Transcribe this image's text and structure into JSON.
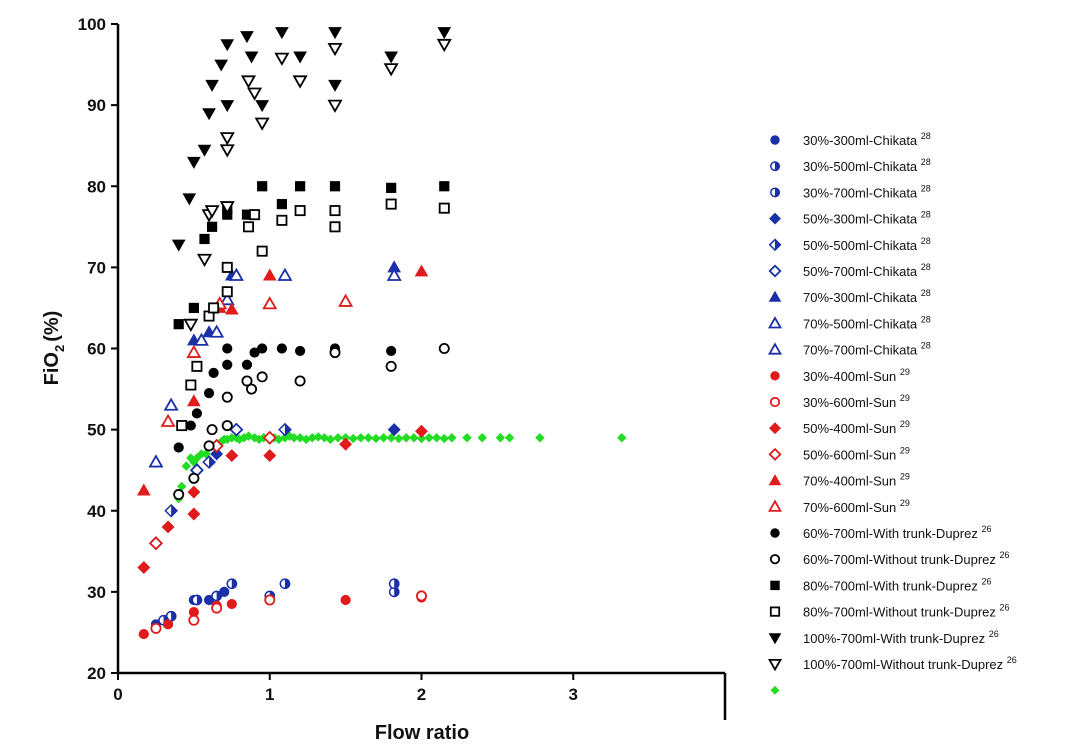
{
  "chart_data": {
    "type": "scatter",
    "title": "",
    "xlabel": "Flow ratio",
    "ylabel": "FiO2 (%)",
    "ylabel_main": "FiO",
    "ylabel_sub": "2",
    "ylabel_unit": "(%)",
    "xlim": [
      0,
      4
    ],
    "ylim": [
      20,
      100
    ],
    "xticks": [
      "0",
      "1",
      "2",
      "3"
    ],
    "yticks": [
      "20",
      "30",
      "40",
      "50",
      "60",
      "70",
      "80",
      "90",
      "100"
    ],
    "grid": false,
    "legend_position": "right",
    "colors": {
      "blue": "#1a2fa8",
      "red": "#e01b1b",
      "black": "#000000",
      "green": "#22dd22"
    },
    "series": [
      {
        "name": "30%-300ml-Chikata",
        "ref": "28",
        "marker": "circle",
        "fill": "filled",
        "color": "#1a2fa8",
        "x": [
          0.25,
          0.5,
          0.6,
          0.7
        ],
        "y": [
          26.0,
          29.0,
          29.0,
          30.0
        ]
      },
      {
        "name": "30%-500ml-Chikata",
        "ref": "28",
        "marker": "circle",
        "fill": "half",
        "color": "#1a2fa8",
        "x": [
          0.35,
          0.52,
          0.75,
          1.1,
          1.82
        ],
        "y": [
          27.0,
          29.0,
          31.0,
          31.0,
          30.0
        ]
      },
      {
        "name": "30%-700ml-Chikata",
        "ref": "28",
        "marker": "circle",
        "fill": "half",
        "color": "#1a2fa8",
        "x": [
          0.3,
          0.65,
          1.0,
          1.82
        ],
        "y": [
          26.5,
          29.5,
          29.5,
          31.0
        ]
      },
      {
        "name": "50%-300ml-Chikata",
        "ref": "28",
        "marker": "diamond",
        "fill": "filled",
        "color": "#1a2fa8",
        "x": [
          0.25,
          0.52,
          0.65,
          1.82
        ],
        "y": [
          36.0,
          45.0,
          47.0,
          50.0
        ]
      },
      {
        "name": "50%-500ml-Chikata",
        "ref": "28",
        "marker": "diamond",
        "fill": "half",
        "color": "#1a2fa8",
        "x": [
          0.35,
          0.6,
          1.1
        ],
        "y": [
          40.0,
          46.0,
          50.0
        ]
      },
      {
        "name": "50%-700ml-Chikata",
        "ref": "28",
        "marker": "diamond",
        "fill": "open",
        "color": "#1a2fa8",
        "x": [
          0.25,
          0.52,
          0.78
        ],
        "y": [
          36.0,
          45.0,
          50.0
        ]
      },
      {
        "name": "70%-300ml-Chikata",
        "ref": "28",
        "marker": "triangle-up",
        "fill": "filled",
        "color": "#1a2fa8",
        "x": [
          0.5,
          0.6,
          0.75,
          1.82
        ],
        "y": [
          61.0,
          62.0,
          69.0,
          70.0
        ]
      },
      {
        "name": "70%-500ml-Chikata",
        "ref": "28",
        "marker": "triangle-up",
        "fill": "open",
        "color": "#1a2fa8",
        "x": [
          0.35,
          0.55,
          0.72,
          1.1
        ],
        "y": [
          53.0,
          61.0,
          66.0,
          69.0
        ]
      },
      {
        "name": "70%-700ml-Chikata",
        "ref": "28",
        "marker": "triangle-up",
        "fill": "open",
        "color": "#1a2fa8",
        "x": [
          0.25,
          0.65,
          0.78,
          1.82
        ],
        "y": [
          46.0,
          62.0,
          69.0,
          69.0
        ]
      },
      {
        "name": "30%-400ml-Sun",
        "ref": "29",
        "marker": "circle",
        "fill": "filled",
        "color": "#e01b1b",
        "x": [
          0.17,
          0.33,
          0.5,
          0.65,
          0.75,
          1.0,
          1.5,
          2.0
        ],
        "y": [
          24.8,
          26.0,
          27.5,
          28.3,
          28.5,
          29.0,
          29.0,
          29.3
        ]
      },
      {
        "name": "30%-600ml-Sun",
        "ref": "29",
        "marker": "circle",
        "fill": "open",
        "color": "#e01b1b",
        "x": [
          0.25,
          0.5,
          0.65,
          1.0,
          2.0
        ],
        "y": [
          25.5,
          26.5,
          28.0,
          29.0,
          29.5
        ]
      },
      {
        "name": "50%-400ml-Sun",
        "ref": "29",
        "marker": "diamond",
        "fill": "filled",
        "color": "#e01b1b",
        "x": [
          0.17,
          0.33,
          0.5,
          0.5,
          0.75,
          1.0,
          1.5,
          2.0
        ],
        "y": [
          33.0,
          38.0,
          39.6,
          42.3,
          46.8,
          46.8,
          48.2,
          49.8
        ]
      },
      {
        "name": "50%-600ml-Sun",
        "ref": "29",
        "marker": "diamond",
        "fill": "open",
        "color": "#e01b1b",
        "x": [
          0.25,
          0.65,
          1.0
        ],
        "y": [
          36.0,
          48.0,
          49.0
        ]
      },
      {
        "name": "70%-400ml-Sun",
        "ref": "29",
        "marker": "triangle-up",
        "fill": "filled",
        "color": "#e01b1b",
        "x": [
          0.17,
          0.5,
          0.67,
          0.75,
          1.0,
          2.0
        ],
        "y": [
          42.5,
          53.5,
          65.0,
          64.8,
          69.0,
          69.5
        ]
      },
      {
        "name": "70%-600ml-Sun",
        "ref": "29",
        "marker": "triangle-up",
        "fill": "open",
        "color": "#e01b1b",
        "x": [
          0.33,
          0.5,
          0.67,
          1.0,
          1.5
        ],
        "y": [
          51.0,
          59.5,
          65.5,
          65.5,
          65.8
        ]
      },
      {
        "name": "60%-700ml-With trunk-Duprez",
        "ref": "26",
        "marker": "circle",
        "fill": "filled",
        "color": "#000000",
        "x": [
          0.4,
          0.48,
          0.52,
          0.6,
          0.63,
          0.72,
          0.72,
          0.85,
          0.9,
          0.95,
          1.08,
          1.2,
          1.43,
          1.8,
          2.15
        ],
        "y": [
          47.8,
          50.5,
          52.0,
          54.5,
          57.0,
          58.0,
          60.0,
          58.0,
          59.5,
          60.0,
          60.0,
          59.7,
          60.0,
          59.7,
          60.0
        ]
      },
      {
        "name": "60%-700ml-Without trunk-Duprez",
        "ref": "26",
        "marker": "circle",
        "fill": "open",
        "color": "#000000",
        "x": [
          0.4,
          0.5,
          0.6,
          0.62,
          0.72,
          0.72,
          0.85,
          0.88,
          0.95,
          1.2,
          1.43,
          1.8,
          2.15
        ],
        "y": [
          42.0,
          44.0,
          48.0,
          50.0,
          50.5,
          54.0,
          56.0,
          55.0,
          56.5,
          56.0,
          59.5,
          57.8,
          60.0
        ]
      },
      {
        "name": "80%-700ml-With trunk-Duprez",
        "ref": "26",
        "marker": "square",
        "fill": "filled",
        "color": "#000000",
        "x": [
          0.4,
          0.5,
          0.57,
          0.62,
          0.72,
          0.72,
          0.85,
          0.95,
          1.08,
          1.2,
          1.43,
          1.8,
          2.15
        ],
        "y": [
          63.0,
          65.0,
          73.5,
          75.0,
          76.5,
          77.2,
          76.5,
          80.0,
          77.8,
          80.0,
          80.0,
          79.8,
          80.0
        ]
      },
      {
        "name": "80%-700ml-Without trunk-Duprez",
        "ref": "26",
        "marker": "square",
        "fill": "open",
        "color": "#000000",
        "x": [
          0.42,
          0.48,
          0.52,
          0.6,
          0.63,
          0.72,
          0.72,
          0.86,
          0.9,
          0.95,
          1.08,
          1.2,
          1.43,
          1.43,
          1.8,
          2.15
        ],
        "y": [
          50.5,
          55.5,
          57.8,
          64.0,
          65.0,
          67.0,
          70.0,
          75.0,
          76.5,
          72.0,
          75.8,
          77.0,
          75.0,
          77.0,
          77.8,
          77.3
        ]
      },
      {
        "name": "100%-700ml-With trunk-Duprez",
        "ref": "26",
        "marker": "triangle-down",
        "fill": "filled",
        "color": "#000000",
        "x": [
          0.4,
          0.47,
          0.5,
          0.57,
          0.6,
          0.62,
          0.68,
          0.72,
          0.72,
          0.85,
          0.88,
          0.95,
          1.08,
          1.2,
          1.43,
          1.43,
          1.8,
          2.15
        ],
        "y": [
          72.8,
          78.5,
          83.0,
          84.5,
          89.0,
          92.5,
          95.0,
          90.0,
          97.5,
          98.5,
          96.0,
          90.0,
          99.0,
          96.0,
          99.0,
          92.5,
          96.0,
          99.0
        ]
      },
      {
        "name": "100%-700ml-Without trunk-Duprez",
        "ref": "26",
        "marker": "triangle-down",
        "fill": "open",
        "color": "#000000",
        "x": [
          0.48,
          0.57,
          0.6,
          0.62,
          0.72,
          0.72,
          0.72,
          0.86,
          0.9,
          0.95,
          1.08,
          1.2,
          1.43,
          1.43,
          1.8,
          2.15
        ],
        "y": [
          63.0,
          71.0,
          76.5,
          77.0,
          77.5,
          84.5,
          86.0,
          93.0,
          91.5,
          87.8,
          95.8,
          93.0,
          97.0,
          90.0,
          94.5,
          97.5
        ]
      },
      {
        "name": "",
        "marker": "diamond",
        "fill": "filled",
        "color": "#22dd22",
        "x": [
          0.4,
          0.42,
          0.45,
          0.48,
          0.5,
          0.52,
          0.55,
          0.58,
          0.6,
          0.62,
          0.65,
          0.68,
          0.7,
          0.72,
          0.75,
          0.78,
          0.8,
          0.83,
          0.86,
          0.9,
          0.93,
          0.96,
          1.0,
          1.03,
          1.06,
          1.1,
          1.13,
          1.16,
          1.2,
          1.24,
          1.28,
          1.32,
          1.36,
          1.4,
          1.45,
          1.5,
          1.55,
          1.6,
          1.65,
          1.7,
          1.75,
          1.8,
          1.85,
          1.9,
          1.95,
          2.0,
          2.05,
          2.1,
          2.15,
          2.2,
          2.3,
          2.4,
          2.52,
          2.58,
          2.78,
          3.32
        ],
        "y": [
          41.5,
          43.0,
          45.5,
          46.5,
          46.0,
          46.5,
          47.0,
          47.0,
          47.8,
          48.0,
          48.3,
          48.5,
          48.8,
          48.8,
          49.0,
          49.0,
          48.8,
          49.0,
          49.2,
          49.0,
          48.8,
          49.0,
          49.2,
          49.0,
          48.8,
          49.0,
          49.2,
          49.0,
          49.0,
          48.8,
          49.0,
          49.1,
          49.0,
          48.8,
          49.0,
          49.0,
          48.9,
          49.0,
          49.0,
          48.9,
          49.0,
          49.0,
          48.9,
          49.0,
          49.0,
          48.9,
          49.0,
          49.0,
          48.9,
          49.0,
          49.0,
          49.0,
          49.0,
          49.0,
          49.0,
          49.0
        ]
      }
    ]
  }
}
